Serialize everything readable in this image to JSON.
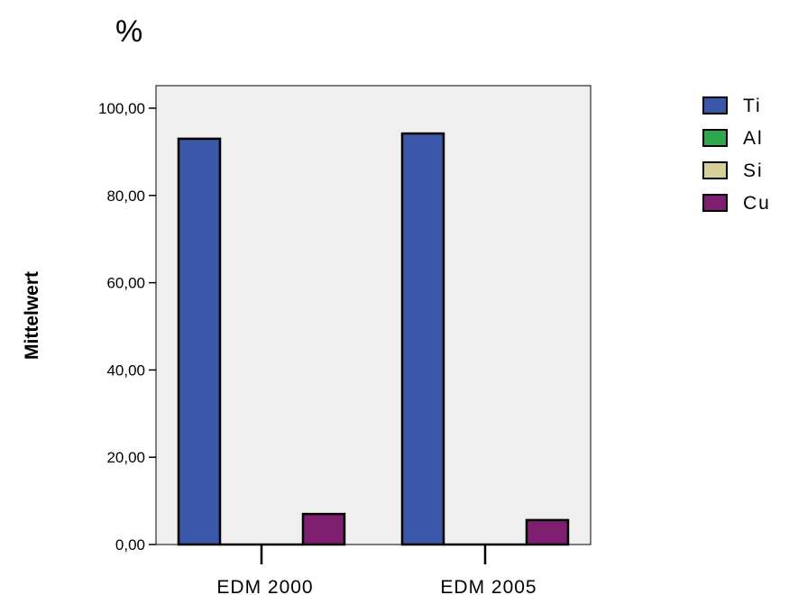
{
  "chart_data": {
    "type": "bar",
    "title": "%",
    "xlabel": "",
    "ylabel": "Mittelwert",
    "categories": [
      "EDM 2000",
      "EDM 2005"
    ],
    "series": [
      {
        "name": "Ti",
        "color": "#3a56a8",
        "values": [
          93.0,
          94.2
        ]
      },
      {
        "name": "Al",
        "color": "#2ea84e",
        "values": [
          0,
          0
        ]
      },
      {
        "name": "Si",
        "color": "#d6cf98",
        "values": [
          0,
          0
        ]
      },
      {
        "name": "Cu",
        "color": "#7d1f6e",
        "values": [
          7.0,
          5.6
        ]
      }
    ],
    "ylim": [
      0,
      100
    ],
    "yticks": [
      "0,00",
      "20,00",
      "40,00",
      "60,00",
      "80,00",
      "100,00"
    ],
    "ytick_values": [
      0,
      20,
      40,
      60,
      80,
      100
    ],
    "grid": false,
    "plot_background": "#efefef",
    "legend_position": "right"
  }
}
